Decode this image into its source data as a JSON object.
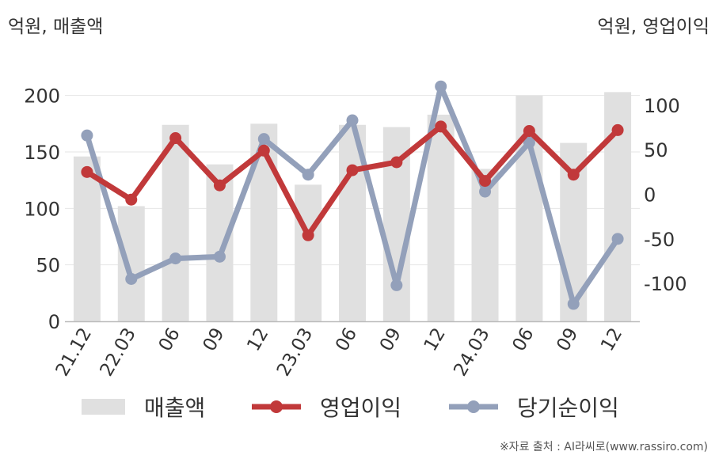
{
  "units": {
    "left": "억원, 매출액",
    "right": "억원, 영업이익"
  },
  "source": "※자료 출처 : AI라씨로(www.rassiro.com)",
  "colors": {
    "bar": "#e0e0e0",
    "operating_profit": "#c1393a",
    "net_income": "#93a0ba",
    "axis": "#bbbbbb",
    "grid": "#e6e6e6",
    "text": "#333333"
  },
  "chart_data": {
    "type": "bar+line",
    "categories": [
      "21.12",
      "22.03",
      "06",
      "09",
      "12",
      "23.03",
      "06",
      "09",
      "12",
      "24.03",
      "06",
      "09",
      "12"
    ],
    "left_axis": {
      "ylim": [
        0,
        225
      ],
      "ticks": [
        0,
        50,
        100,
        150,
        200
      ]
    },
    "right_axis": {
      "ylim": [
        -142.5,
        142.5
      ],
      "ticks": [
        -100,
        -50,
        0,
        50,
        100
      ]
    },
    "legend_position": "bottom",
    "grid": true,
    "series": [
      {
        "name": "매출액",
        "type": "bar",
        "axis": "left",
        "values": [
          146,
          102,
          174,
          139,
          175,
          121,
          174,
          172,
          183,
          135,
          200,
          158,
          203
        ]
      },
      {
        "name": "영업이익",
        "type": "line",
        "axis": "right",
        "values": [
          25,
          -6,
          63,
          10,
          49,
          -46,
          27,
          36,
          76,
          15,
          71,
          22,
          72
        ]
      },
      {
        "name": "당기순이익",
        "type": "line",
        "axis": "right",
        "values": [
          66,
          -95,
          -72,
          -70,
          62,
          22,
          83,
          -102,
          121,
          3,
          58,
          -123,
          -50
        ]
      }
    ]
  }
}
